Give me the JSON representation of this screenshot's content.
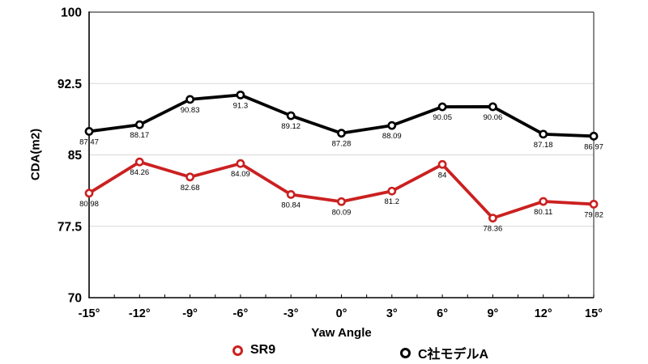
{
  "chart_data": {
    "type": "line",
    "title": "",
    "xlabel": "Yaw Angle",
    "ylabel": "CDA(m2)",
    "categories": [
      "-15°",
      "-12°",
      "-9°",
      "-6°",
      "-3°",
      "0°",
      "3°",
      "6°",
      "9°",
      "12°",
      "15°"
    ],
    "ylim": [
      70,
      100
    ],
    "y_ticks": [
      100,
      92.5,
      85,
      77.5,
      70
    ],
    "grid": "horizontal",
    "legend_position": "bottom",
    "data_labels": "below-markers",
    "series": [
      {
        "name": "SR9",
        "color": "#cb2020",
        "values": [
          80.98,
          84.26,
          82.68,
          84.09,
          80.84,
          80.09,
          81.2,
          84,
          78.36,
          80.11,
          79.82
        ]
      },
      {
        "name": "C社モデルA",
        "color": "#000000",
        "values": [
          87.47,
          88.17,
          90.83,
          91.3,
          89.12,
          87.28,
          88.09,
          90.05,
          90.06,
          87.18,
          86.97
        ]
      }
    ]
  },
  "colors": {
    "background": "#ffffff",
    "grid": "#d8d8d8",
    "axis": "#000000",
    "frame": "#3d3d3d",
    "label": "#000000"
  }
}
